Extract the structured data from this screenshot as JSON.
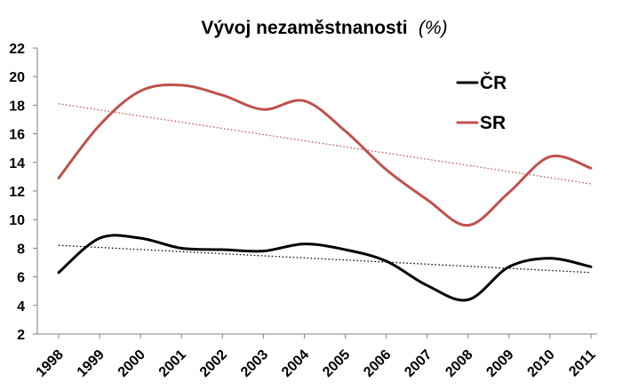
{
  "chart_data": {
    "type": "line",
    "title": "Vývoj nezaměstnanosti",
    "title_unit": "(%)",
    "xlabel": "",
    "ylabel": "",
    "categories": [
      "1998",
      "1999",
      "2000",
      "2001",
      "2002",
      "2003",
      "2004",
      "2005",
      "2006",
      "2007",
      "2008",
      "2009",
      "2010",
      "2011"
    ],
    "ylim": [
      2,
      22
    ],
    "yticks": [
      2,
      4,
      6,
      8,
      10,
      12,
      14,
      16,
      18,
      20,
      22
    ],
    "grid": false,
    "legend_position": "top-right",
    "series": [
      {
        "name": "ČR",
        "color": "#000000",
        "values": [
          6.3,
          8.7,
          8.7,
          8.0,
          7.9,
          7.8,
          8.3,
          7.9,
          7.1,
          5.4,
          4.4,
          6.7,
          7.3,
          6.7
        ]
      },
      {
        "name": "SR",
        "color": "#c0504d",
        "values": [
          12.9,
          16.6,
          19.0,
          19.4,
          18.7,
          17.7,
          18.3,
          16.2,
          13.5,
          11.4,
          9.6,
          11.9,
          14.4,
          13.6
        ]
      }
    ],
    "trendlines": [
      {
        "series": "ČR",
        "style": "dotted",
        "color": "#000000",
        "start": 8.2,
        "end": 6.3
      },
      {
        "series": "SR",
        "style": "dotted",
        "color": "#c0504d",
        "start": 18.1,
        "end": 12.5
      }
    ]
  }
}
